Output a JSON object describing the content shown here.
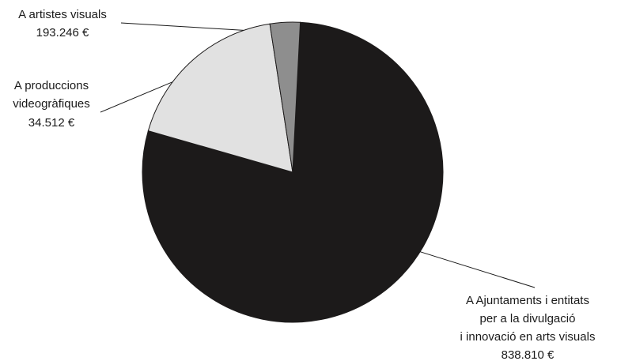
{
  "chart_data": {
    "type": "pie",
    "slices": [
      {
        "label_lines": [
          "A Ajuntaments i entitats",
          "per a la divulgació",
          "i innovació en arts visuals"
        ],
        "value_label": "838.810 €",
        "value": 838810,
        "color": "#1c1a1a"
      },
      {
        "label_lines": [
          "A artistes visuals"
        ],
        "value_label": "193.246 €",
        "value": 193246,
        "color": "#e1e1e1"
      },
      {
        "label_lines": [
          "A produccions",
          "videogràfiques"
        ],
        "value_label": "34.512 €",
        "value": 34512,
        "color": "#8e8e8e"
      }
    ],
    "title": "",
    "legend": "none"
  }
}
